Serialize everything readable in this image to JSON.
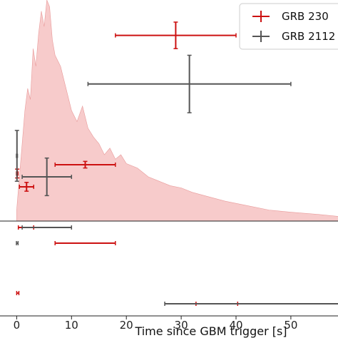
{
  "chart_data": {
    "type": "scatter",
    "xlabel": "Time since GBM trigger [s]",
    "ylabel": "",
    "xlim": [
      -3,
      59
    ],
    "x_ticks": [
      0,
      10,
      20,
      30,
      40,
      50
    ],
    "grid": false,
    "legend_position": "top-right",
    "background_lightcurve": {
      "color": "#f4b9b9",
      "envelope": [
        [
          0.0,
          0.05
        ],
        [
          0.5,
          0.2
        ],
        [
          1.0,
          0.35
        ],
        [
          1.5,
          0.5
        ],
        [
          2.0,
          0.6
        ],
        [
          2.5,
          0.55
        ],
        [
          3.0,
          0.78
        ],
        [
          3.5,
          0.7
        ],
        [
          4.0,
          0.85
        ],
        [
          4.5,
          0.95
        ],
        [
          5.0,
          0.88
        ],
        [
          5.5,
          1.0
        ],
        [
          6.0,
          0.97
        ],
        [
          6.5,
          0.82
        ],
        [
          7.0,
          0.75
        ],
        [
          8.0,
          0.7
        ],
        [
          9.0,
          0.6
        ],
        [
          10.0,
          0.5
        ],
        [
          11.0,
          0.45
        ],
        [
          12.0,
          0.52
        ],
        [
          13.0,
          0.42
        ],
        [
          14.0,
          0.38
        ],
        [
          15.0,
          0.35
        ],
        [
          16.0,
          0.3
        ],
        [
          17.0,
          0.33
        ],
        [
          18.0,
          0.28
        ],
        [
          19.0,
          0.3
        ],
        [
          20.0,
          0.26
        ],
        [
          22.0,
          0.24
        ],
        [
          24.0,
          0.2
        ],
        [
          26.0,
          0.18
        ],
        [
          28.0,
          0.16
        ],
        [
          30.0,
          0.15
        ],
        [
          32.0,
          0.13
        ],
        [
          35.0,
          0.11
        ],
        [
          38.0,
          0.09
        ],
        [
          42.0,
          0.07
        ],
        [
          46.0,
          0.05
        ],
        [
          50.0,
          0.04
        ],
        [
          55.0,
          0.03
        ],
        [
          59.0,
          0.02
        ]
      ]
    },
    "series": [
      {
        "name": "GRB 230",
        "color": "#cc1111",
        "points": [
          {
            "x": 29.0,
            "xerr": [
              11.0,
              11.0
            ],
            "y": 0.84,
            "yerr": [
              0.06,
              0.06
            ]
          },
          {
            "x": 12.5,
            "xerr": [
              5.5,
              5.5
            ],
            "y": 0.255,
            "yerr": [
              0.015,
              0.015
            ]
          },
          {
            "x": 1.8,
            "xerr": [
              1.3,
              1.3
            ],
            "y": 0.155,
            "yerr": [
              0.02,
              0.02
            ]
          },
          {
            "x": 0.1,
            "xerr": [
              0.15,
              0.15
            ],
            "y": 0.215,
            "yerr": [
              0.02,
              0.02
            ]
          }
        ],
        "lower_panel": [
          {
            "x": 1.7,
            "xerr": [
              1.4,
              1.4
            ],
            "row": 1
          },
          {
            "x": 12.5,
            "xerr": [
              5.5,
              5.5
            ],
            "row": 2
          },
          {
            "x": 0.2,
            "xerr": [
              0.2,
              0.2
            ],
            "row": 3
          },
          {
            "x": 36.5,
            "xerr": [
              3.8,
              3.8
            ],
            "row": 4
          }
        ]
      },
      {
        "name": "GRB 2112",
        "color": "#555555",
        "points": [
          {
            "x": 31.5,
            "xerr": [
              18.5,
              18.5
            ],
            "y": 0.62,
            "yerr": [
              0.13,
              0.13
            ]
          },
          {
            "x": 5.5,
            "xerr": [
              4.5,
              4.5
            ],
            "y": 0.2,
            "yerr": [
              0.085,
              0.085
            ]
          },
          {
            "x": 0.05,
            "xerr": [
              0.1,
              0.1
            ],
            "y": 0.295,
            "yerr": [
              0.115,
              0.115
            ]
          }
        ],
        "lower_panel": [
          {
            "x": 5.5,
            "xerr": [
              4.5,
              4.5
            ],
            "row": 1
          },
          {
            "x": 0.1,
            "xerr": [
              0.15,
              0.15
            ],
            "row": 2
          },
          {
            "x": 43.0,
            "xerr": [
              16.0,
              16.0
            ],
            "row": 3
          }
        ]
      }
    ]
  }
}
